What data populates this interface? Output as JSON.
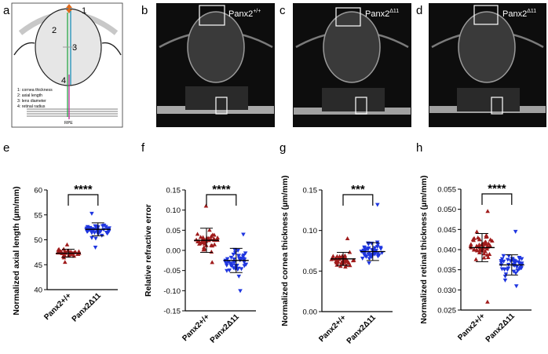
{
  "panels": {
    "a": {
      "letter": "a",
      "numbers": [
        "1",
        "2",
        "3",
        "4"
      ],
      "legend": [
        "1: cornea thickness",
        "2: axial length",
        "3: lens diameter",
        "4: retinal radius"
      ],
      "rpe_label": "RPE"
    },
    "b": {
      "letter": "b",
      "label_base": "Panx2",
      "label_sup": "+/+"
    },
    "c": {
      "letter": "c",
      "label_base": "Panx2",
      "label_sup": "Δ11"
    },
    "d": {
      "letter": "d",
      "label_base": "Panx2",
      "label_sup": "Δ11"
    }
  },
  "colors": {
    "wt": "#a01c1c",
    "mut": "#1f36e0",
    "axis": "#000000"
  },
  "chart_data": [
    {
      "panel": "e",
      "type": "scatter",
      "ylabel": "Normalized axial length (µm/mm)",
      "ylim": [
        40,
        60
      ],
      "yticks": [
        "40",
        "45",
        "50",
        "55",
        "60"
      ],
      "ytick_values": [
        40,
        45,
        50,
        55,
        60
      ],
      "categories": [
        "Panx2+/+",
        "Panx2Δ11"
      ],
      "series": [
        {
          "name": "Panx2+/+",
          "marker": "triangle-up",
          "mean": 47.3,
          "sd": 0.8,
          "n": 40,
          "min": 45.5,
          "max": 49.0
        },
        {
          "name": "Panx2Δ11",
          "marker": "triangle-down",
          "mean": 52.1,
          "sd": 1.3,
          "n": 45,
          "min": 48.5,
          "max": 55.3
        }
      ],
      "significance": "****"
    },
    {
      "panel": "f",
      "type": "scatter",
      "ylabel": "Relative refractive error",
      "ylim": [
        -0.15,
        0.15
      ],
      "yticks": [
        "-0.15",
        "-0.10",
        "-0.05",
        "0.00",
        "0.05",
        "0.10",
        "0.15"
      ],
      "ytick_values": [
        -0.15,
        -0.1,
        -0.05,
        0.0,
        0.05,
        0.1,
        0.15
      ],
      "categories": [
        "Panx2+/+",
        "Panx2Δ11"
      ],
      "series": [
        {
          "name": "Panx2+/+",
          "marker": "triangle-up",
          "mean": 0.025,
          "sd": 0.03,
          "n": 40,
          "min": -0.03,
          "max": 0.11
        },
        {
          "name": "Panx2Δ11",
          "marker": "triangle-down",
          "mean": -0.025,
          "sd": 0.03,
          "n": 45,
          "min": -0.1,
          "max": 0.04
        }
      ],
      "significance": "****"
    },
    {
      "panel": "g",
      "type": "scatter",
      "ylabel": "Normalized cornea thickness (µm/mm)",
      "ylim": [
        0,
        0.15
      ],
      "yticks": [
        "0.00",
        "0.05",
        "0.10",
        "0.15"
      ],
      "ytick_values": [
        0,
        0.05,
        0.1,
        0.15
      ],
      "categories": [
        "Panx2+/+",
        "Panx2Δ11"
      ],
      "series": [
        {
          "name": "Panx2+/+",
          "marker": "triangle-up",
          "mean": 0.065,
          "sd": 0.008,
          "n": 45,
          "min": 0.055,
          "max": 0.09
        },
        {
          "name": "Panx2Δ11",
          "marker": "triangle-down",
          "mean": 0.074,
          "sd": 0.011,
          "n": 45,
          "min": 0.06,
          "max": 0.132
        }
      ],
      "significance": "***"
    },
    {
      "panel": "h",
      "type": "scatter",
      "ylabel": "Normalized retinal thickness (µm/mm)",
      "ylim": [
        0.025,
        0.055
      ],
      "yticks": [
        "0.025",
        "0.030",
        "0.035",
        "0.040",
        "0.045",
        "0.050",
        "0.055"
      ],
      "ytick_values": [
        0.025,
        0.03,
        0.035,
        0.04,
        0.045,
        0.05,
        0.055
      ],
      "categories": [
        "Panx2+/+",
        "Panx2Δ11"
      ],
      "series": [
        {
          "name": "Panx2+/+",
          "marker": "triangle-up",
          "mean": 0.0405,
          "sd": 0.0035,
          "n": 50,
          "min": 0.027,
          "max": 0.0495
        },
        {
          "name": "Panx2Δ11",
          "marker": "triangle-down",
          "mean": 0.0362,
          "sd": 0.0025,
          "n": 45,
          "min": 0.031,
          "max": 0.0445
        }
      ],
      "significance": "****"
    }
  ]
}
